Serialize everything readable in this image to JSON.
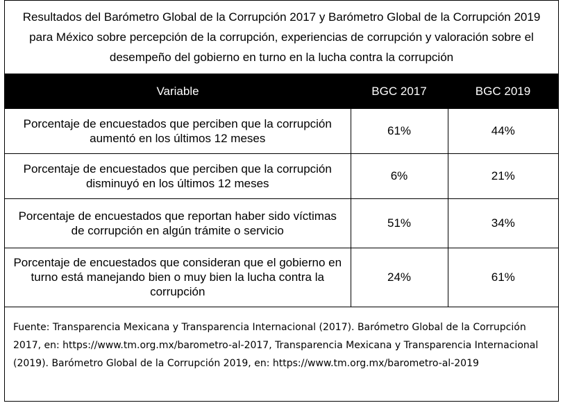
{
  "title": "Resultados del Barómetro Global de la Corrupción 2017 y Barómetro Global de la Corrupción 2019 para México sobre percepción de la corrupción, experiencias de corrupción y valoración sobre el desempeño del gobierno en turno en la lucha contra la corrupción",
  "table": {
    "headers": [
      "Variable",
      "BGC 2017",
      "BGC 2019"
    ],
    "rows": [
      {
        "variable": "Porcentaje de encuestados que perciben que la corrupción aumentó en los últimos 12 meses",
        "bgc2017": "61%",
        "bgc2019": "44%"
      },
      {
        "variable": "Porcentaje de encuestados que perciben que la corrupción disminuyó en los últimos 12 meses",
        "bgc2017": "6%",
        "bgc2019": "21%"
      },
      {
        "variable": "Porcentaje de encuestados que reportan haber sido víctimas de corrupción en algún trámite o servicio",
        "bgc2017": "51%",
        "bgc2019": "34%"
      },
      {
        "variable": "Porcentaje de encuestados que consideran que el gobierno en turno está manejando bien o muy bien la lucha contra la corrupción",
        "bgc2017": "24%",
        "bgc2019": "61%"
      }
    ]
  },
  "source": "Fuente: Transparencia Mexicana y Transparencia Internacional (2017). Barómetro Global de la Corrupción 2017, en: https://www.tm.org.mx/barometro-al-2017,  Transparencia Mexicana y Transparencia Internacional (2019). Barómetro Global de la Corrupción 2019, en: https://www.tm.org.mx/barometro-al-2019"
}
